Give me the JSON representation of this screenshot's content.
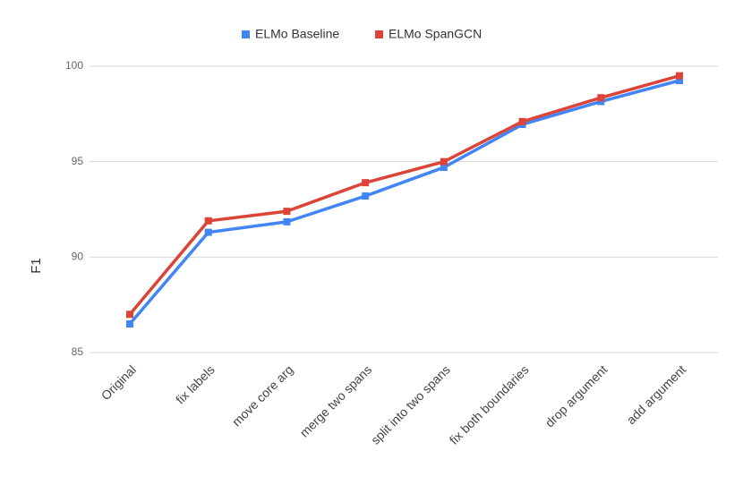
{
  "chart_data": {
    "type": "line",
    "categories": [
      "Original",
      "fix labels",
      "move core arg",
      "merge two spans",
      "split into two spans",
      "fix both boundaries",
      "drop argument",
      "add argument"
    ],
    "series": [
      {
        "name": "ELMo Baseline",
        "color": "#4285f4",
        "values": [
          86.5,
          91.3,
          91.85,
          93.2,
          94.7,
          96.95,
          98.15,
          99.25
        ]
      },
      {
        "name": "ELMo SpanGCN",
        "color": "#db4437",
        "values": [
          87.0,
          91.9,
          92.4,
          93.9,
          95.0,
          97.1,
          98.35,
          99.5
        ]
      }
    ],
    "ylabel": "F1",
    "xlabel": "",
    "ylim": [
      85,
      100
    ],
    "yticks": [
      85,
      90,
      95,
      100
    ],
    "grid": true,
    "legend": "top-center"
  }
}
